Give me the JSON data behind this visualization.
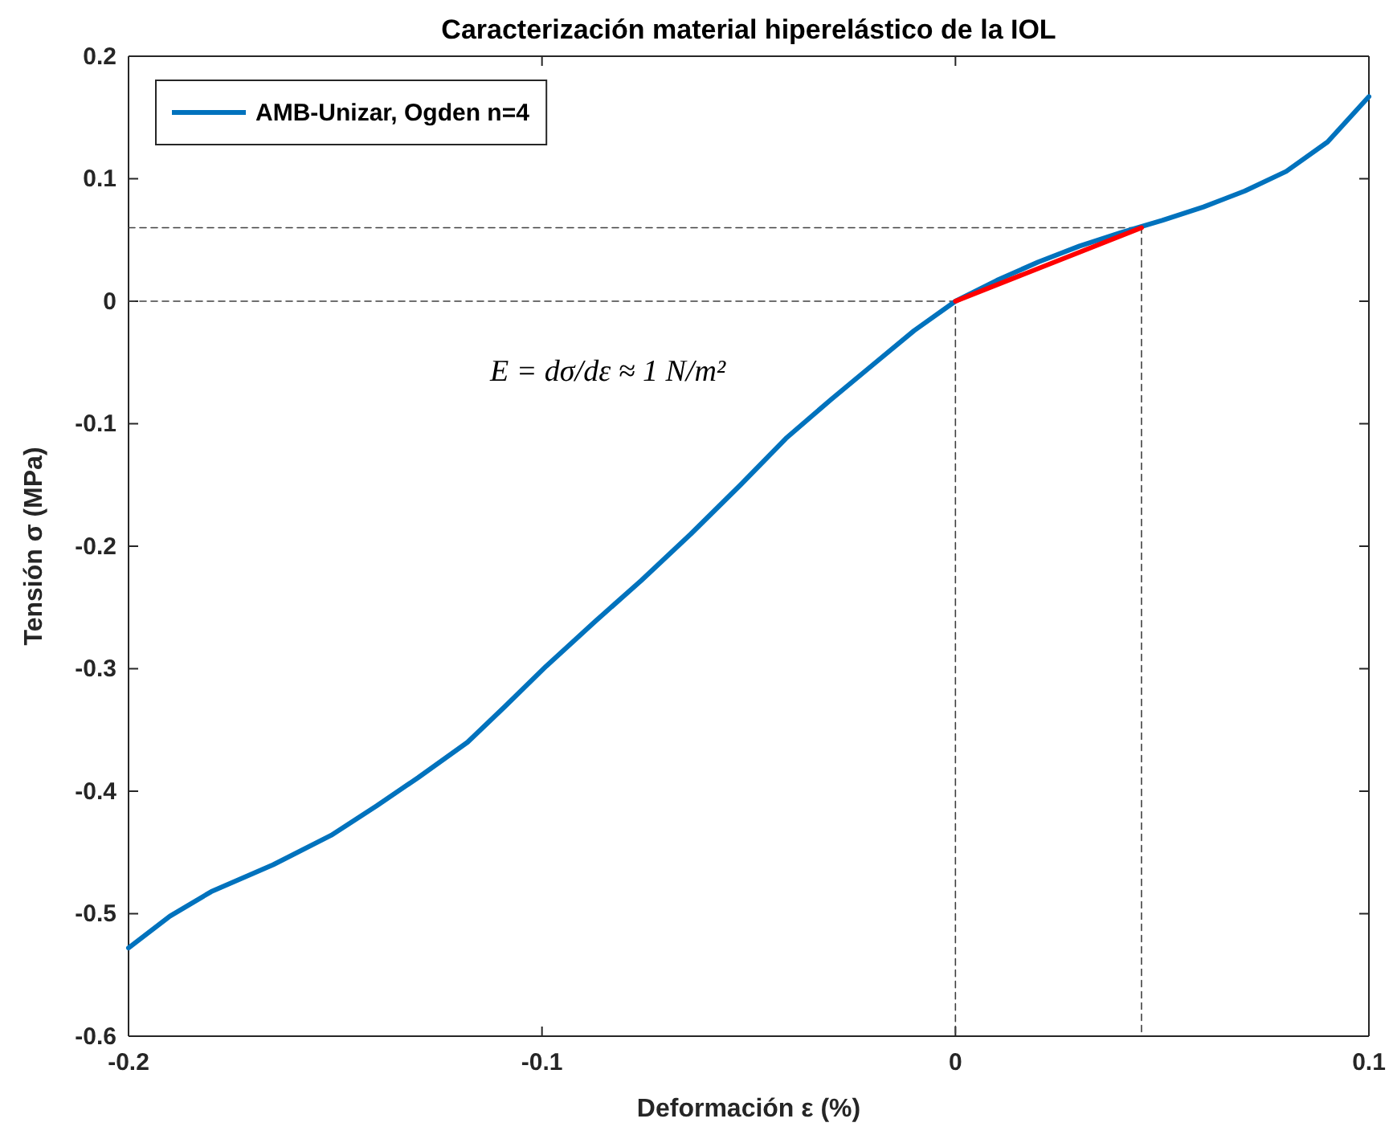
{
  "chart_data": {
    "type": "line",
    "title": "Caracterización material hiperelástico de la IOL",
    "xlabel": "Deformación ε  (%)",
    "ylabel": "Tensión σ (MPa)",
    "xlim": [
      -0.2,
      0.1
    ],
    "xticks": [
      -0.2,
      -0.1,
      0,
      0.1
    ],
    "ylim": [
      -0.6,
      0.2
    ],
    "yticks": [
      -0.6,
      -0.5,
      -0.4,
      -0.3,
      -0.2,
      -0.1,
      0,
      0.1,
      0.2
    ],
    "grid": false,
    "legend": "top left",
    "line_style": "solid",
    "marker": "none",
    "annotations": [
      "E = dσ/dε ≈ 1 N/m²"
    ],
    "series": [
      {
        "name": "AMB-Unizar, Ogden n=4",
        "color": "#0072bd",
        "x": [
          -0.2,
          -0.19,
          -0.18,
          -0.165,
          -0.151,
          -0.14,
          -0.13,
          -0.118,
          -0.109,
          -0.099,
          -0.087,
          -0.076,
          -0.064,
          -0.052,
          -0.041,
          -0.03,
          -0.02,
          -0.01,
          0,
          0.01,
          0.02,
          0.03,
          0.04,
          0.05,
          0.06,
          0.07,
          0.08,
          0.09,
          0.1
        ],
        "values": [
          -0.528,
          -0.502,
          -0.482,
          -0.46,
          -0.436,
          -0.412,
          -0.389,
          -0.36,
          -0.331,
          -0.298,
          -0.261,
          -0.228,
          -0.19,
          -0.15,
          -0.112,
          -0.08,
          -0.052,
          -0.024,
          0,
          0.017,
          0.032,
          0.045,
          0.056,
          0.066,
          0.077,
          0.09,
          0.106,
          0.13,
          0.167
        ]
      },
      {
        "color": "#ff0000",
        "x": [
          0,
          0.045
        ],
        "values": [
          0,
          0.06
        ]
      },
      {
        "color": "#404040",
        "line_style": "dashed",
        "x": [
          -0.2,
          0.045,
          0.045
        ],
        "values": [
          0.06,
          0.06,
          -0.6
        ]
      },
      {
        "color": "#404040",
        "line_style": "dashed",
        "x": [
          -0.2,
          0,
          0
        ],
        "values": [
          0,
          0,
          -0.6
        ]
      }
    ]
  }
}
